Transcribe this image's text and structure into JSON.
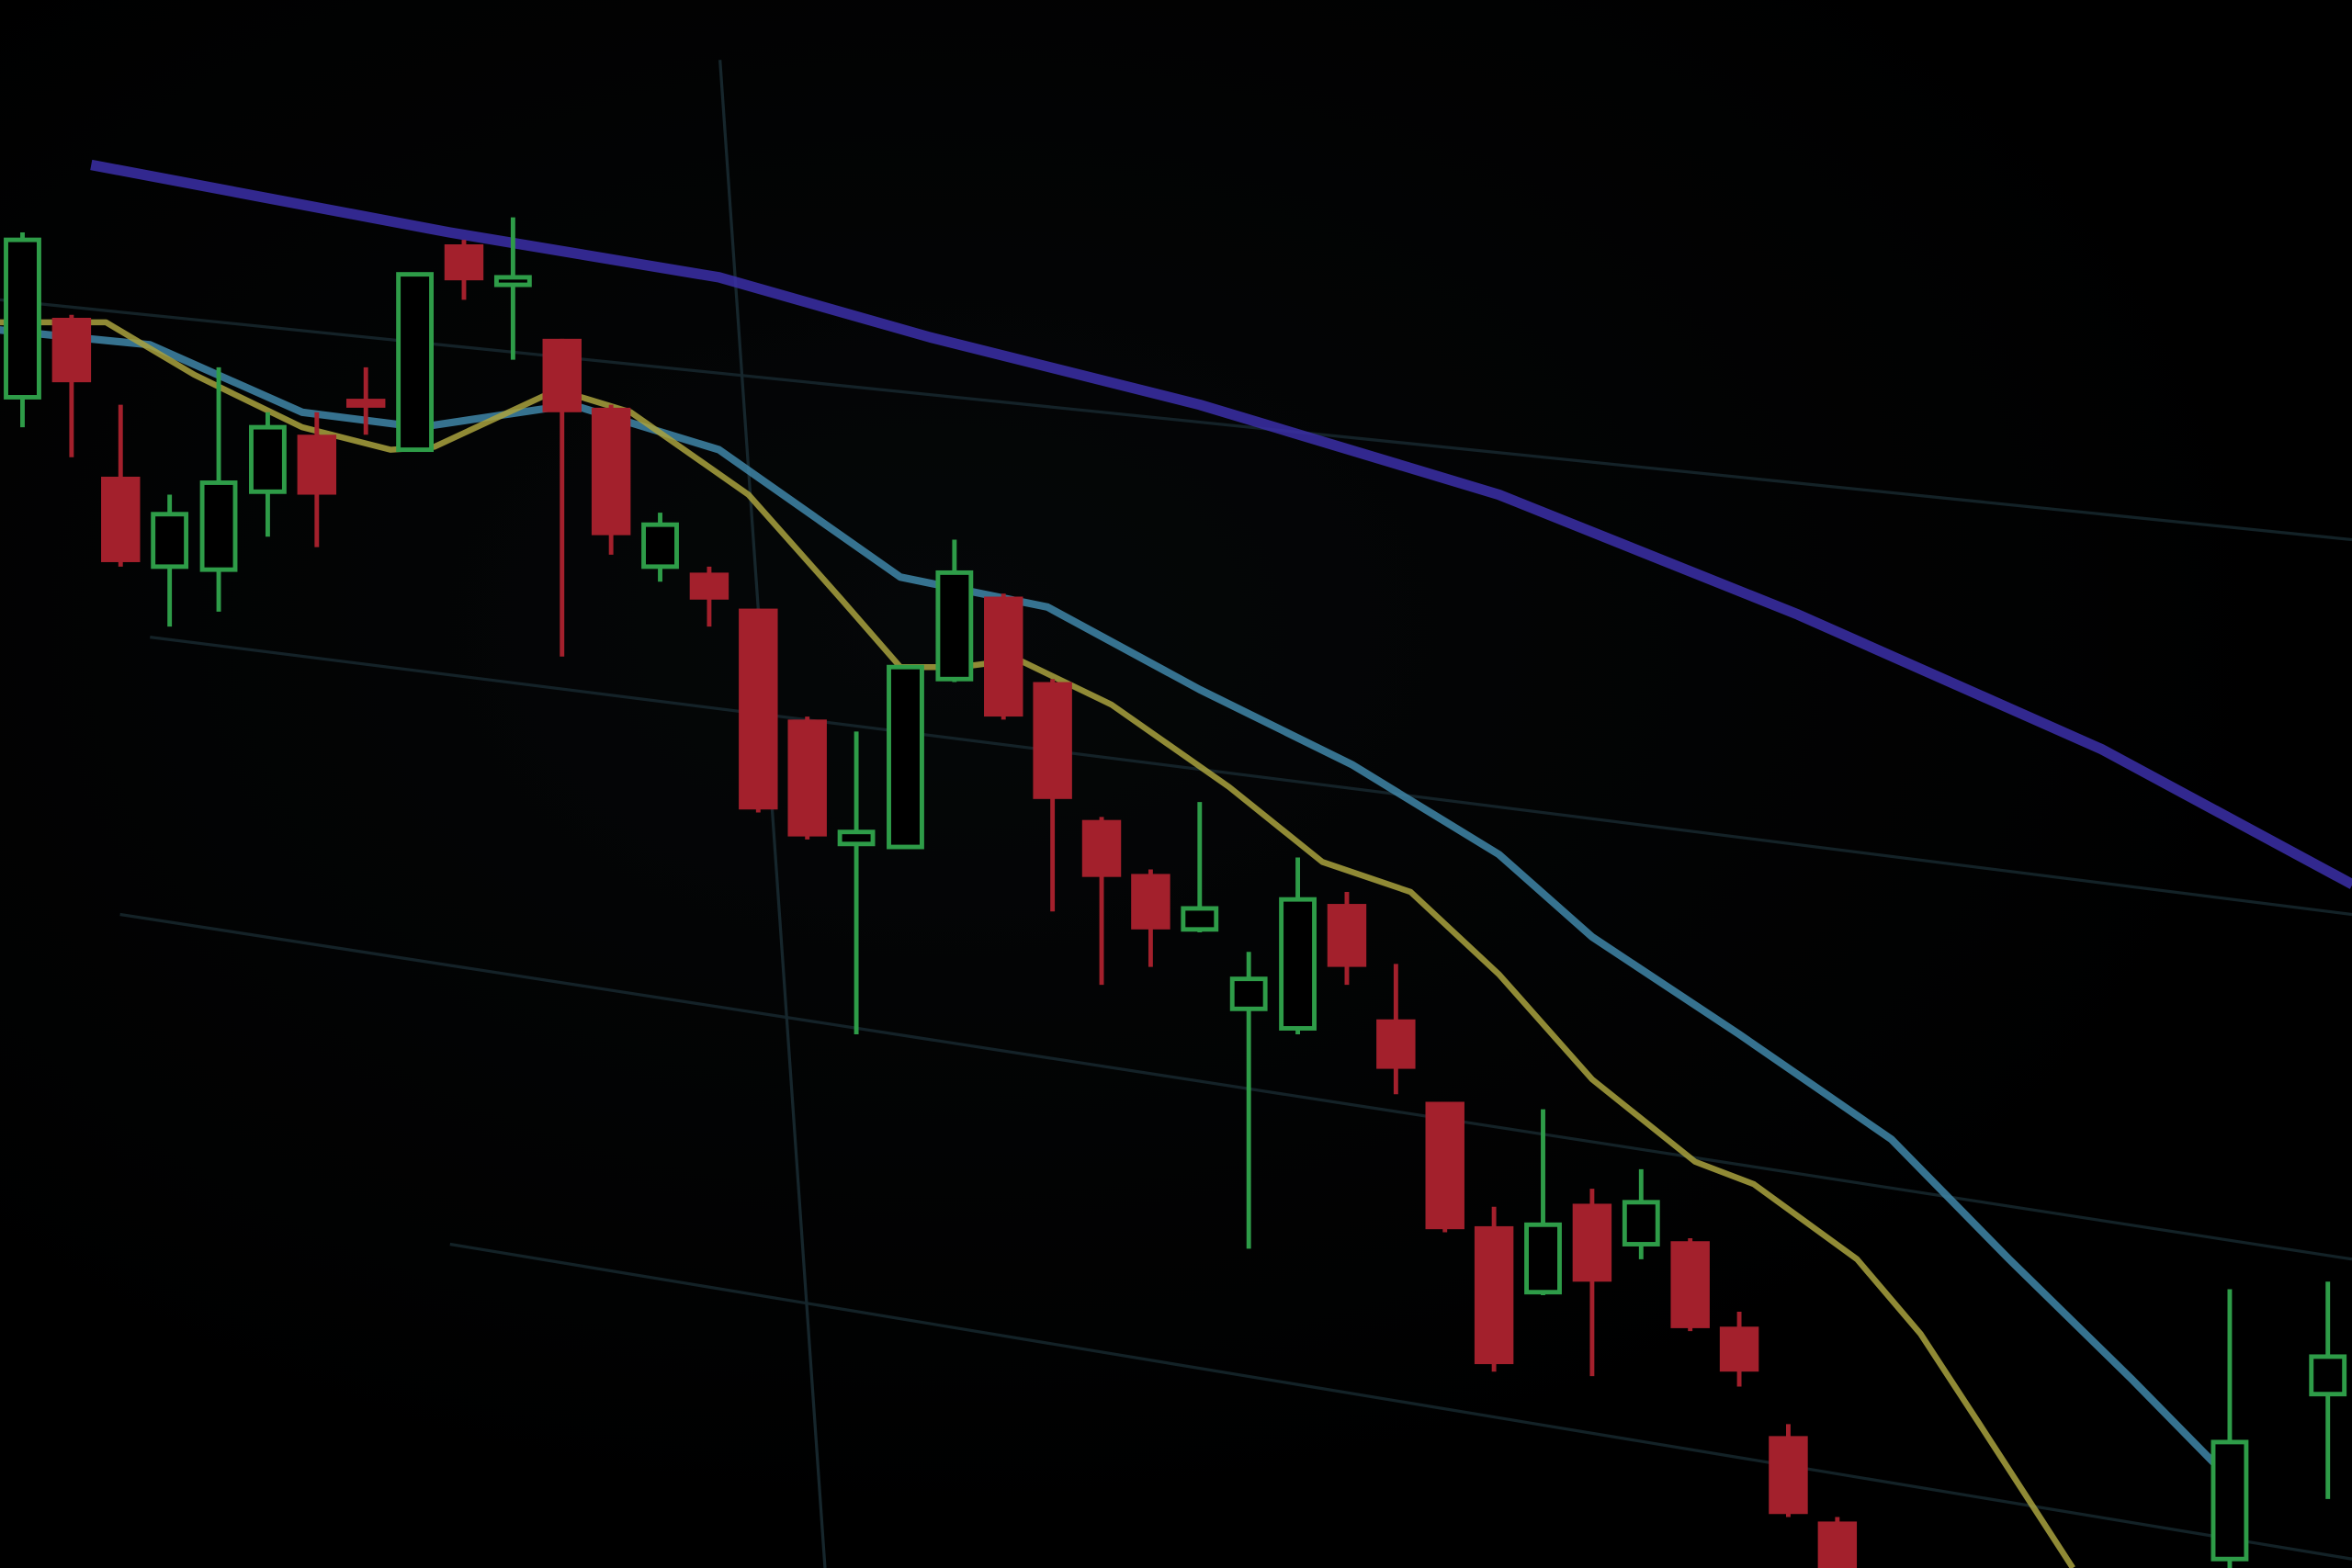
{
  "chart_data": {
    "type": "candlestick",
    "title": "",
    "xlabel": "",
    "ylabel": "",
    "grid": true,
    "colors": {
      "up": "#2e9c48",
      "down": "#a3202c",
      "ma_long": "#3b2fa8",
      "ma_mid": "#3f86a8",
      "ma_short": "#a9a23e",
      "grid": "#16262c",
      "background": "#000000"
    },
    "candles": [
      {
        "t": 0,
        "o": 78.1,
        "h": 89.1,
        "l": 76.1,
        "c": 88.6
      },
      {
        "t": 1,
        "o": 83.4,
        "h": 83.6,
        "l": 74.1,
        "c": 79.1
      },
      {
        "t": 2,
        "o": 72.8,
        "h": 77.6,
        "l": 66.8,
        "c": 67.1
      },
      {
        "t": 3,
        "o": 66.8,
        "h": 71.6,
        "l": 62.8,
        "c": 70.3
      },
      {
        "t": 4,
        "o": 66.6,
        "h": 80.1,
        "l": 63.8,
        "c": 72.4
      },
      {
        "t": 5,
        "o": 71.8,
        "h": 77.1,
        "l": 68.8,
        "c": 76.1
      },
      {
        "t": 6,
        "o": 75.6,
        "h": 77.1,
        "l": 68.1,
        "c": 71.6
      },
      {
        "t": 7,
        "o": 78.0,
        "h": 80.1,
        "l": 75.6,
        "c": 77.4
      },
      {
        "t": 8,
        "o": 74.6,
        "h": 86.3,
        "l": 74.6,
        "c": 86.3
      },
      {
        "t": 9,
        "o": 88.3,
        "h": 88.6,
        "l": 84.6,
        "c": 85.9
      },
      {
        "t": 10,
        "o": 85.6,
        "h": 90.1,
        "l": 80.6,
        "c": 86.1
      },
      {
        "t": 11,
        "o": 82.0,
        "h": 82.0,
        "l": 60.8,
        "c": 77.1
      },
      {
        "t": 12,
        "o": 77.4,
        "h": 77.6,
        "l": 67.6,
        "c": 68.9
      },
      {
        "t": 13,
        "o": 66.8,
        "h": 70.4,
        "l": 65.8,
        "c": 69.6
      },
      {
        "t": 14,
        "o": 66.4,
        "h": 66.8,
        "l": 62.8,
        "c": 64.6
      },
      {
        "t": 15,
        "o": 64.0,
        "h": 64.0,
        "l": 50.4,
        "c": 50.6
      },
      {
        "t": 16,
        "o": 56.6,
        "h": 56.8,
        "l": 48.6,
        "c": 48.8
      },
      {
        "t": 17,
        "o": 48.3,
        "h": 55.8,
        "l": 35.6,
        "c": 49.1
      },
      {
        "t": 18,
        "o": 48.1,
        "h": 60.1,
        "l": 48.1,
        "c": 60.1
      },
      {
        "t": 19,
        "o": 59.3,
        "h": 68.6,
        "l": 59.1,
        "c": 66.4
      },
      {
        "t": 20,
        "o": 64.8,
        "h": 65.0,
        "l": 56.6,
        "c": 56.8
      },
      {
        "t": 21,
        "o": 59.1,
        "h": 59.3,
        "l": 43.8,
        "c": 51.3
      },
      {
        "t": 22,
        "o": 49.9,
        "h": 50.1,
        "l": 38.9,
        "c": 46.1
      },
      {
        "t": 23,
        "o": 46.3,
        "h": 46.6,
        "l": 40.1,
        "c": 42.6
      },
      {
        "t": 24,
        "o": 42.6,
        "h": 51.1,
        "l": 42.4,
        "c": 44.0
      },
      {
        "t": 25,
        "o": 37.3,
        "h": 41.1,
        "l": 21.3,
        "c": 39.3
      },
      {
        "t": 26,
        "o": 36.0,
        "h": 47.4,
        "l": 35.6,
        "c": 44.6
      },
      {
        "t": 27,
        "o": 44.3,
        "h": 45.1,
        "l": 38.9,
        "c": 40.1
      },
      {
        "t": 28,
        "o": 36.6,
        "h": 40.3,
        "l": 31.6,
        "c": 33.3
      },
      {
        "t": 29,
        "o": 31.1,
        "h": 31.1,
        "l": 22.4,
        "c": 22.6
      },
      {
        "t": 30,
        "o": 22.8,
        "h": 24.1,
        "l": 13.1,
        "c": 13.6
      },
      {
        "t": 31,
        "o": 18.4,
        "h": 30.6,
        "l": 18.2,
        "c": 22.9
      },
      {
        "t": 32,
        "o": 24.3,
        "h": 25.3,
        "l": 12.8,
        "c": 19.1
      },
      {
        "t": 33,
        "o": 21.6,
        "h": 26.6,
        "l": 20.6,
        "c": 24.4
      },
      {
        "t": 34,
        "o": 21.8,
        "h": 22.0,
        "l": 15.8,
        "c": 16.0
      },
      {
        "t": 35,
        "o": 16.1,
        "h": 17.1,
        "l": 12.1,
        "c": 13.1
      },
      {
        "t": 36,
        "o": 8.8,
        "h": 9.6,
        "l": 3.4,
        "c": 3.6
      },
      {
        "t": 37,
        "o": 3.1,
        "h": 3.4,
        "l": 0,
        "c": 0
      },
      {
        "t": 45,
        "o": 0.6,
        "h": 18.6,
        "l": 0,
        "c": 8.4
      },
      {
        "t": 47,
        "o": 11.6,
        "h": 19.1,
        "l": 4.6,
        "c": 14.1
      }
    ],
    "series": [
      {
        "key": "ma_long",
        "points": [
          [
            1.4,
            93.6
          ],
          [
            8.7,
            89.1
          ],
          [
            14.2,
            86.1
          ],
          [
            18.5,
            82.1
          ],
          [
            24,
            77.6
          ],
          [
            30.1,
            71.6
          ],
          [
            36.2,
            63.6
          ],
          [
            42.4,
            54.6
          ],
          [
            47.5,
            45.6
          ]
        ]
      },
      {
        "key": "ma_mid",
        "points": [
          [
            -0.5,
            82.6
          ],
          [
            2.6,
            81.6
          ],
          [
            5.7,
            77.1
          ],
          [
            8.1,
            76.1
          ],
          [
            11.2,
            77.6
          ],
          [
            14.2,
            74.6
          ],
          [
            17.9,
            66.1
          ],
          [
            20.9,
            64.1
          ],
          [
            24,
            58.6
          ],
          [
            27.1,
            53.6
          ],
          [
            30.1,
            47.6
          ],
          [
            32,
            42.1
          ],
          [
            35,
            35.6
          ],
          [
            38.1,
            28.6
          ],
          [
            40.5,
            20.6
          ],
          [
            43,
            12.6
          ],
          [
            45.1,
            5.6
          ]
        ]
      },
      {
        "key": "ma_short",
        "points": [
          [
            -0.5,
            83.1
          ],
          [
            1.7,
            83.1
          ],
          [
            3.5,
            79.6
          ],
          [
            5.7,
            76.1
          ],
          [
            7.5,
            74.6
          ],
          [
            8.4,
            74.8
          ],
          [
            10.9,
            78.6
          ],
          [
            12.4,
            77.1
          ],
          [
            14.8,
            71.6
          ],
          [
            16.7,
            64.6
          ],
          [
            17.9,
            60.1
          ],
          [
            19.1,
            60.1
          ],
          [
            20.3,
            60.6
          ],
          [
            22.2,
            57.6
          ],
          [
            24.6,
            52.1
          ],
          [
            26.5,
            47.1
          ],
          [
            28.3,
            45.1
          ],
          [
            30.1,
            39.6
          ],
          [
            32,
            32.6
          ],
          [
            34.1,
            27.1
          ],
          [
            35.3,
            25.6
          ],
          [
            37.4,
            20.6
          ],
          [
            38.7,
            15.6
          ],
          [
            39.9,
            9.6
          ],
          [
            41.8,
            0
          ]
        ]
      }
    ]
  }
}
